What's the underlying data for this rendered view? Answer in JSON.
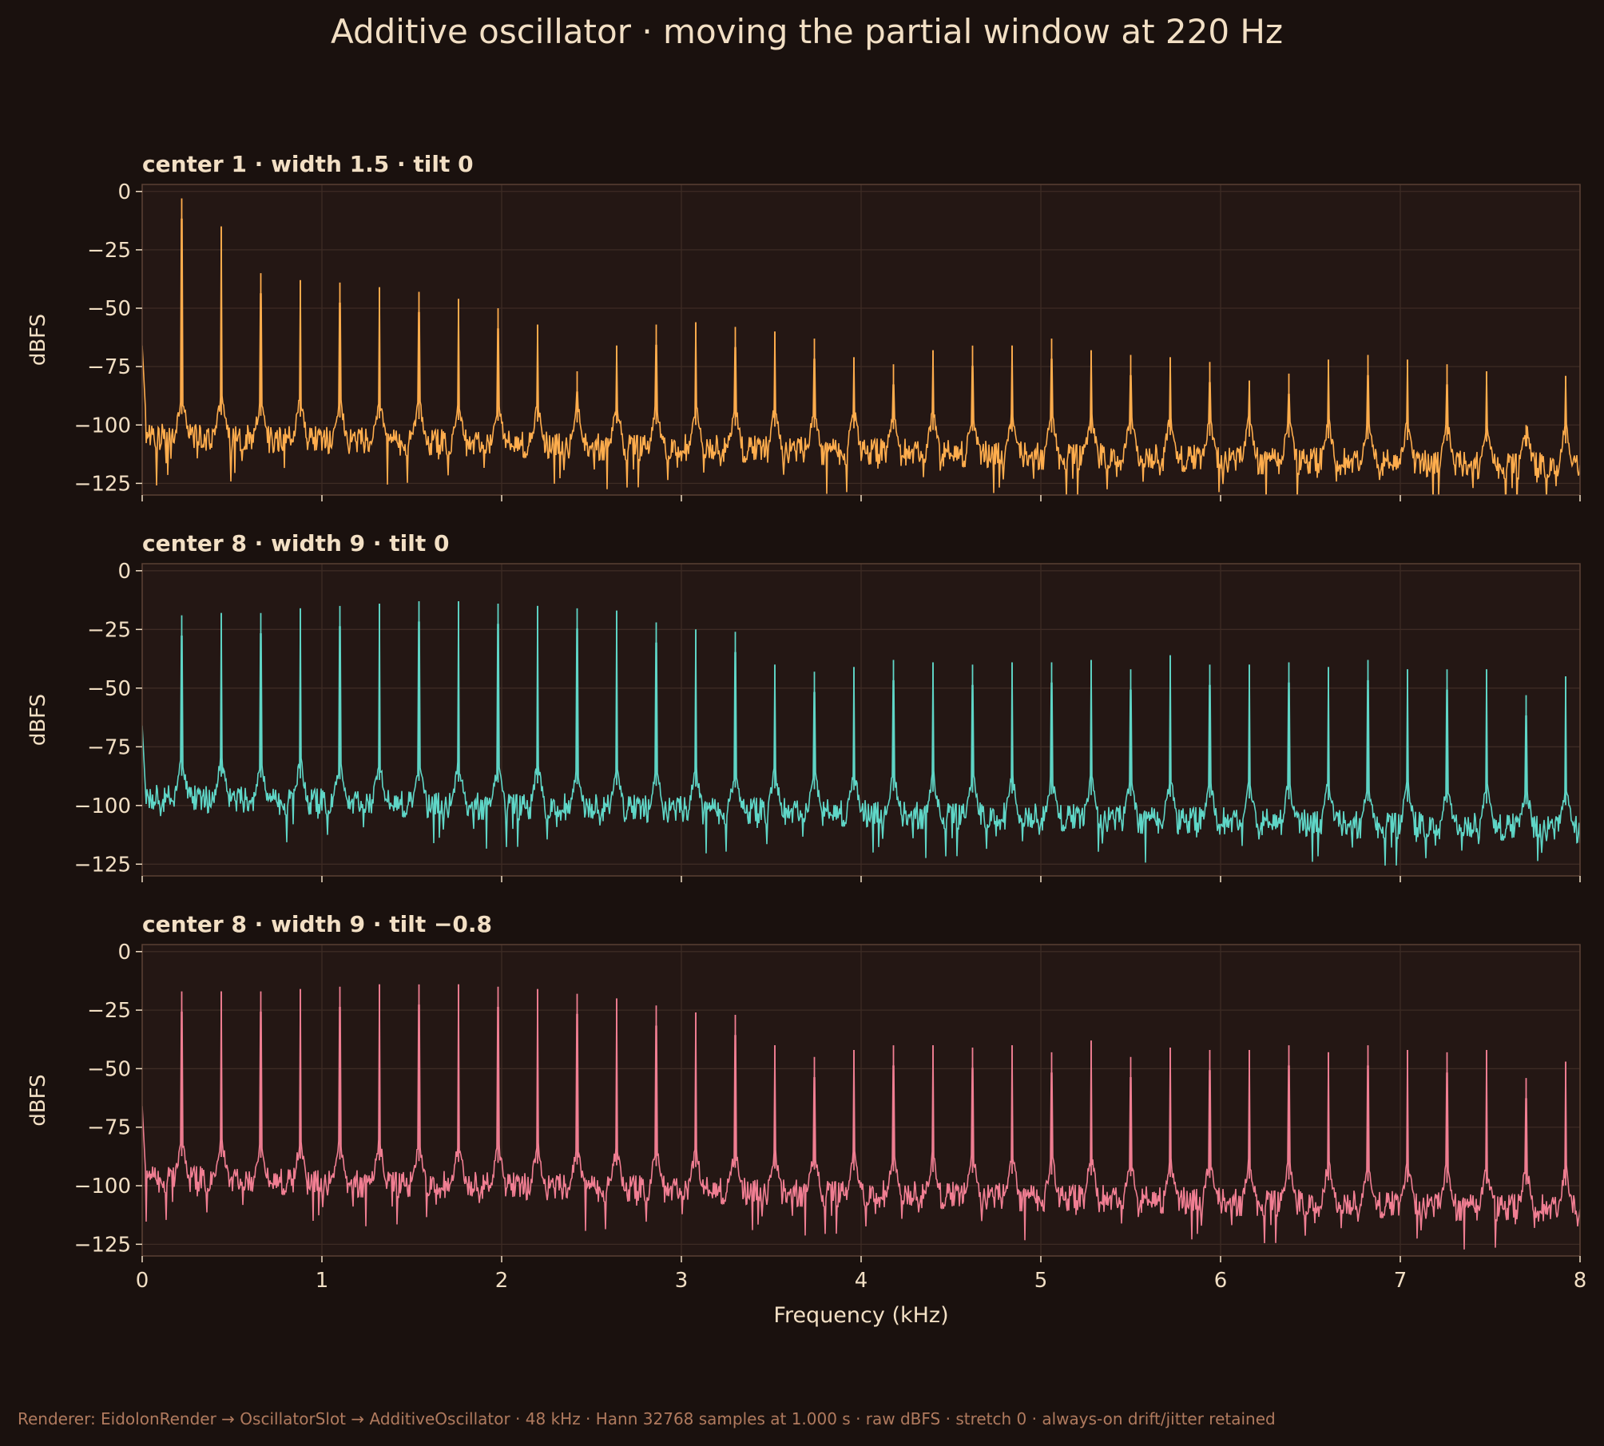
{
  "figure": {
    "title": "Additive oscillator · moving the partial window at 220 Hz",
    "footer": "Renderer: EidolonRender → OscillatorSlot → AdditiveOscillator · 48 kHz · Hann 32768 samples at 1.000 s · raw dBFS · stretch 0 · always-on drift/jitter retained",
    "colors": {
      "background": "#1a110e",
      "panel": "#241714",
      "grid": "#3d2b24",
      "spine": "#5a4034",
      "text": "#f2dfc4",
      "footer": "#b07a5e"
    }
  },
  "chart_data": [
    {
      "type": "line",
      "title": "center 1 · width 1.5 · tilt 0",
      "xlabel": "",
      "ylabel": "dBFS",
      "xlim": [
        0,
        8
      ],
      "ylim": [
        -130,
        3
      ],
      "xticks": [
        0,
        1,
        2,
        3,
        4,
        5,
        6,
        7,
        8
      ],
      "yticks": [
        0,
        -25,
        -50,
        -75,
        -100,
        -125
      ],
      "ytick_labels": [
        "0",
        "−25",
        "−50",
        "−75",
        "−100",
        "−125"
      ],
      "grid": true,
      "color": "#ffad4d",
      "noise_floor_db": [
        -105,
        -118
      ],
      "partials": {
        "fundamental_hz": 220,
        "freq_khz": [
          0.22,
          0.44,
          0.66,
          0.88,
          1.1,
          1.32,
          1.54,
          1.76,
          1.98,
          2.2,
          2.42,
          2.64,
          2.86,
          3.08,
          3.3,
          3.52,
          3.74,
          3.96,
          4.18,
          4.4,
          4.62,
          4.84,
          5.06,
          5.28,
          5.5,
          5.72,
          5.94,
          6.16,
          6.38,
          6.6,
          6.82,
          7.04,
          7.26,
          7.48,
          7.7,
          7.92
        ],
        "peak_db": [
          -3,
          -15,
          -35,
          -38,
          -39,
          -41,
          -43,
          -46,
          -50,
          -57,
          -77,
          -66,
          -57,
          -56,
          -58,
          -60,
          -63,
          -71,
          -74,
          -68,
          -66,
          -66,
          -63,
          -68,
          -70,
          -71,
          -73,
          -81,
          -78,
          -72,
          -70,
          -72,
          -74,
          -77,
          -100,
          -79
        ]
      }
    },
    {
      "type": "line",
      "title": "center 8 · width 9 · tilt 0",
      "xlabel": "",
      "ylabel": "dBFS",
      "xlim": [
        0,
        8
      ],
      "ylim": [
        -130,
        3
      ],
      "xticks": [
        0,
        1,
        2,
        3,
        4,
        5,
        6,
        7,
        8
      ],
      "yticks": [
        0,
        -25,
        -50,
        -75,
        -100,
        -125
      ],
      "ytick_labels": [
        "0",
        "−25",
        "−50",
        "−75",
        "−100",
        "−125"
      ],
      "grid": true,
      "color": "#5fd6c7",
      "noise_floor_db": [
        -97,
        -110
      ],
      "partials": {
        "fundamental_hz": 220,
        "freq_khz": [
          0.22,
          0.44,
          0.66,
          0.88,
          1.1,
          1.32,
          1.54,
          1.76,
          1.98,
          2.2,
          2.42,
          2.64,
          2.86,
          3.08,
          3.3,
          3.52,
          3.74,
          3.96,
          4.18,
          4.4,
          4.62,
          4.84,
          5.06,
          5.28,
          5.5,
          5.72,
          5.94,
          6.16,
          6.38,
          6.6,
          6.82,
          7.04,
          7.26,
          7.48,
          7.7,
          7.92
        ],
        "peak_db": [
          -19,
          -18,
          -18,
          -16,
          -15,
          -14,
          -13,
          -13,
          -14,
          -15,
          -16,
          -17,
          -22,
          -25,
          -26,
          -40,
          -43,
          -41,
          -38,
          -39,
          -40,
          -39,
          -39,
          -38,
          -42,
          -36,
          -40,
          -40,
          -39,
          -41,
          -38,
          -42,
          -42,
          -42,
          -53,
          -45
        ]
      }
    },
    {
      "type": "line",
      "title": "center 8 · width 9 · tilt −0.8",
      "xlabel": "Frequency (kHz)",
      "ylabel": "dBFS",
      "xlim": [
        0,
        8
      ],
      "ylim": [
        -130,
        3
      ],
      "xticks": [
        0,
        1,
        2,
        3,
        4,
        5,
        6,
        7,
        8
      ],
      "yticks": [
        0,
        -25,
        -50,
        -75,
        -100,
        -125
      ],
      "ytick_labels": [
        "0",
        "−25",
        "−50",
        "−75",
        "−100",
        "−125"
      ],
      "grid": true,
      "color": "#f07e92",
      "noise_floor_db": [
        -97,
        -110
      ],
      "partials": {
        "fundamental_hz": 220,
        "freq_khz": [
          0.22,
          0.44,
          0.66,
          0.88,
          1.1,
          1.32,
          1.54,
          1.76,
          1.98,
          2.2,
          2.42,
          2.64,
          2.86,
          3.08,
          3.3,
          3.52,
          3.74,
          3.96,
          4.18,
          4.4,
          4.62,
          4.84,
          5.06,
          5.28,
          5.5,
          5.72,
          5.94,
          6.16,
          6.38,
          6.6,
          6.82,
          7.04,
          7.26,
          7.48,
          7.7,
          7.92
        ],
        "peak_db": [
          -17,
          -17,
          -17,
          -16,
          -15,
          -14,
          -14,
          -14,
          -15,
          -16,
          -18,
          -20,
          -23,
          -26,
          -27,
          -40,
          -45,
          -42,
          -40,
          -40,
          -41,
          -40,
          -43,
          -38,
          -45,
          -41,
          -42,
          -42,
          -40,
          -43,
          -40,
          -42,
          -43,
          -42,
          -54,
          -47
        ]
      }
    }
  ]
}
